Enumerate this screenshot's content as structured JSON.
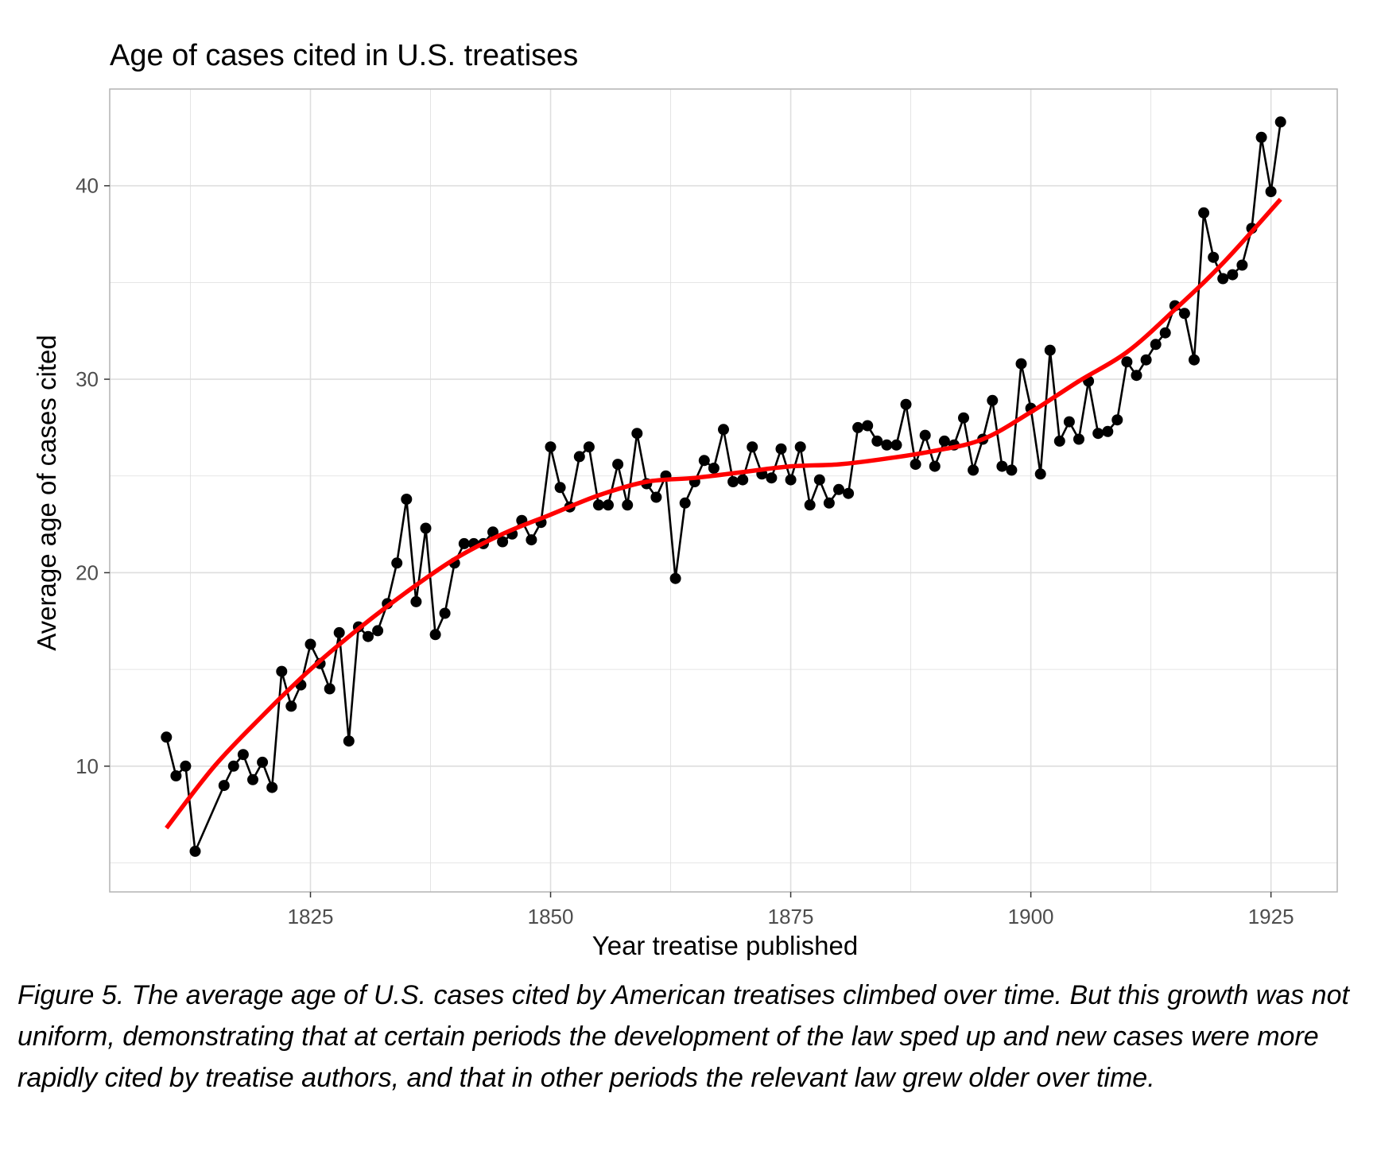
{
  "caption": "Figure 5. The average age of U.S. cases cited by American treatises climbed over time. But this growth was not uniform, demonstrating that at certain periods the development of the law sped up and new cases were more rapidly cited by treatise authors, and that in other periods the relevant law grew older over time.",
  "chart_data": {
    "type": "line",
    "title": "Age of cases cited in U.S. treatises",
    "xlabel": "Year treatise published",
    "ylabel": "Average age of cases cited",
    "xlim": [
      1804.1,
      1931.9
    ],
    "ylim": [
      3.5,
      45
    ],
    "x_ticks": [
      1825,
      1850,
      1875,
      1900,
      1925
    ],
    "y_ticks": [
      10,
      20,
      30,
      40
    ],
    "grid": true,
    "legend": "none",
    "colors": {
      "series": "#000000",
      "trend": "#ff0000",
      "grid": "#dedede",
      "border": "#b3b3b3"
    },
    "series": [
      {
        "x": [
          1810,
          1811,
          1812,
          1813,
          1816,
          1817,
          1818,
          1819,
          1820,
          1821,
          1822,
          1823,
          1824,
          1825,
          1826,
          1827,
          1828,
          1829,
          1830,
          1831,
          1832,
          1833,
          1834,
          1835,
          1836,
          1837,
          1838,
          1839,
          1840,
          1841,
          1842,
          1843,
          1844,
          1845,
          1846,
          1847,
          1848,
          1849,
          1850,
          1851,
          1852,
          1853,
          1854,
          1855,
          1856,
          1857,
          1858,
          1859,
          1860,
          1861,
          1862,
          1863,
          1864,
          1865,
          1866,
          1867,
          1868,
          1869,
          1870,
          1871,
          1872,
          1873,
          1874,
          1875,
          1876,
          1877,
          1878,
          1879,
          1880,
          1881,
          1882,
          1883,
          1884,
          1885,
          1886,
          1887,
          1888,
          1889,
          1890,
          1891,
          1892,
          1893,
          1894,
          1895,
          1896,
          1897,
          1898,
          1899,
          1900,
          1901,
          1902,
          1903,
          1904,
          1905,
          1906,
          1907,
          1908,
          1909,
          1910,
          1911,
          1912,
          1913,
          1914,
          1915,
          1916,
          1917,
          1918,
          1919,
          1920,
          1921,
          1922,
          1923,
          1924,
          1925,
          1926
        ],
        "y": [
          11.5,
          9.5,
          10.0,
          5.6,
          9.0,
          10.0,
          10.6,
          9.3,
          10.2,
          8.9,
          14.9,
          13.1,
          14.2,
          16.3,
          15.3,
          14.0,
          16.9,
          11.3,
          17.2,
          16.7,
          17.0,
          18.4,
          20.5,
          23.8,
          18.5,
          22.3,
          16.8,
          17.9,
          20.5,
          21.5,
          21.5,
          21.5,
          22.1,
          21.6,
          22.0,
          22.7,
          21.7,
          22.6,
          26.5,
          24.4,
          23.4,
          26.0,
          26.5,
          23.5,
          23.5,
          25.6,
          23.5,
          27.2,
          24.6,
          23.9,
          25.0,
          19.7,
          23.6,
          24.7,
          25.8,
          25.4,
          27.4,
          24.7,
          24.8,
          26.5,
          25.1,
          24.9,
          26.4,
          24.8,
          26.5,
          23.5,
          24.8,
          23.6,
          24.3,
          24.1,
          27.5,
          27.6,
          26.8,
          26.6,
          26.6,
          28.7,
          25.6,
          27.1,
          25.5,
          26.8,
          26.6,
          28.0,
          25.3,
          26.9,
          28.9,
          25.5,
          25.3,
          30.8,
          28.5,
          25.1,
          31.5,
          26.8,
          27.8,
          26.9,
          29.9,
          27.2,
          27.3,
          27.9,
          30.9,
          30.2,
          31.0,
          31.8,
          32.4,
          33.8,
          33.4,
          31.0,
          38.6,
          36.3,
          35.2,
          35.4,
          35.9,
          37.8,
          42.5,
          39.7,
          43.3
        ]
      },
      {
        "x": [
          1810,
          1815,
          1820,
          1825,
          1830,
          1835,
          1840,
          1845,
          1850,
          1855,
          1860,
          1865,
          1870,
          1875,
          1880,
          1885,
          1890,
          1895,
          1900,
          1905,
          1910,
          1915,
          1920,
          1926
        ],
        "y": [
          6.8,
          10.0,
          12.6,
          15.0,
          17.1,
          19.0,
          20.7,
          22.0,
          23.0,
          24.0,
          24.7,
          24.9,
          25.2,
          25.5,
          25.6,
          25.9,
          26.3,
          26.9,
          28.3,
          29.9,
          31.4,
          33.6,
          36.0,
          39.3
        ]
      }
    ]
  }
}
